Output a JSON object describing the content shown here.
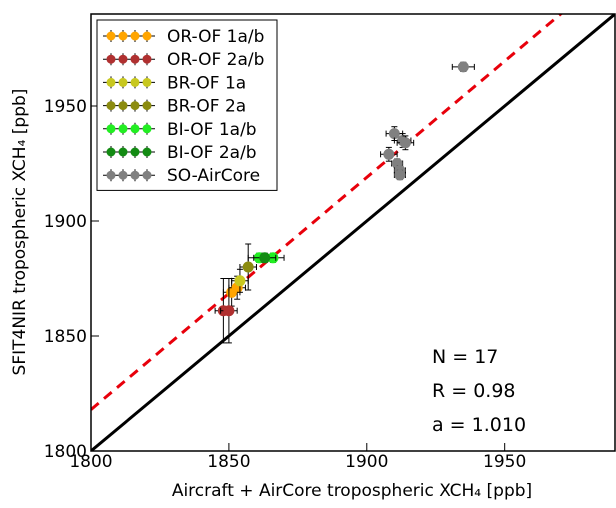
{
  "chart_data": {
    "type": "scatter",
    "xlabel": "Aircraft + AirCore tropospheric XCH₄ [ppb]",
    "ylabel": "SFIT4NIR tropospheric XCH₄ [ppb]",
    "xlim": [
      1800,
      1990
    ],
    "ylim": [
      1800,
      1990
    ],
    "xticks": [
      1800,
      1850,
      1900,
      1950
    ],
    "yticks": [
      1800,
      1850,
      1900,
      1950
    ],
    "reference_line": {
      "slope": 1,
      "color": "#000000"
    },
    "fit_line": {
      "slope": 1.01,
      "color": "#e8000b"
    },
    "annotations": [
      "N = 17",
      "R = 0.98",
      "a = 1.010"
    ],
    "legend": "upper left",
    "series": [
      {
        "name": "OR-OF 1a/b",
        "color": "#ffa500",
        "x": [
          1851,
          1853
        ],
        "y": [
          1869,
          1871
        ],
        "xerr": [
          3,
          3
        ],
        "yerr": [
          6,
          5
        ]
      },
      {
        "name": "OR-OF 2a/b",
        "color": "#b03030",
        "x": [
          1848,
          1850
        ],
        "y": [
          1861,
          1861
        ],
        "xerr": [
          3,
          3
        ],
        "yerr": [
          14,
          14
        ]
      },
      {
        "name": "BR-OF 1a",
        "color": "#c8c820",
        "x": [
          1854
        ],
        "y": [
          1874
        ],
        "xerr": [
          3
        ],
        "yerr": [
          5
        ]
      },
      {
        "name": "BR-OF 2a",
        "color": "#8b8b10",
        "x": [
          1857
        ],
        "y": [
          1880
        ],
        "xerr": [
          3
        ],
        "yerr": [
          10
        ]
      },
      {
        "name": "BI-OF 1a/b",
        "color": "#22ee22",
        "x": [
          1861,
          1866
        ],
        "y": [
          1884,
          1884
        ],
        "xerr": [
          4,
          4
        ],
        "yerr": [
          2,
          2
        ]
      },
      {
        "name": "BI-OF 2a/b",
        "color": "#138b13",
        "x": [
          1863
        ],
        "y": [
          1884
        ],
        "xerr": [
          4
        ],
        "yerr": [
          2
        ]
      },
      {
        "name": "SO-AirCore",
        "color": "#808080",
        "x": [
          1935,
          1910,
          1913,
          1914,
          1908,
          1911,
          1912,
          1912
        ],
        "y": [
          1967,
          1938,
          1935,
          1934,
          1929,
          1925,
          1922,
          1920
        ],
        "xerr": [
          4,
          3,
          3,
          3,
          3,
          2,
          2,
          2
        ],
        "yerr": [
          2,
          3,
          3,
          3,
          3,
          2,
          2,
          2
        ]
      }
    ]
  }
}
